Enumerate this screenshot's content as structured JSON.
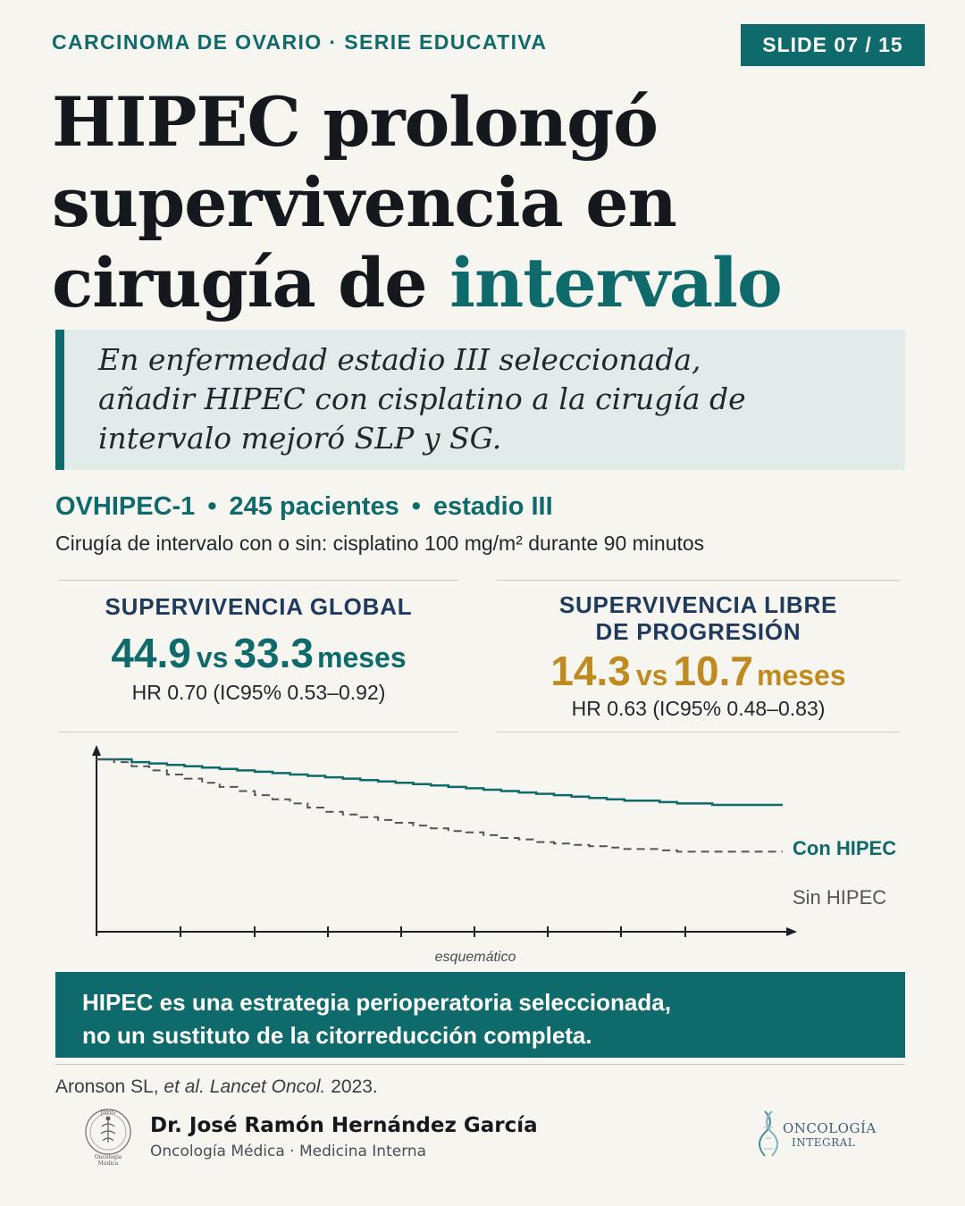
{
  "header": {
    "kicker": "CARCINOMA DE OVARIO · SERIE EDUCATIVA",
    "slide_badge": "SLIDE 07 / 15"
  },
  "title": {
    "line1": "HIPEC prolongó",
    "line2": "supervivencia en",
    "line3_plain": "cirugía de ",
    "line3_accent": "intervalo"
  },
  "quote": {
    "line1": "En enfermedad estadio III seleccionada,",
    "line2": "añadir HIPEC con cisplatino a la cirugía de",
    "line3": "intervalo mejoró SLP y SG."
  },
  "study": {
    "name": "OVHIPEC-1",
    "patients": "245 pacientes",
    "stage": "estadio III",
    "separator": "•",
    "description": "Cirugía de intervalo con o sin: cisplatino 100 mg/m² durante 90 minutos"
  },
  "stats": {
    "os": {
      "label": "SUPERVIVENCIA GLOBAL",
      "value_a": "44.9",
      "vs": "vs",
      "value_b": "33.3",
      "unit": "meses",
      "hr": "HR 0.70 (IC95% 0.53–0.92)"
    },
    "pfs": {
      "label_line1": "SUPERVIVENCIA LIBRE",
      "label_line2": "DE PROGRESIÓN",
      "value_a": "14.3",
      "vs": "vs",
      "value_b": "10.7",
      "unit": "meses",
      "hr": "HR 0.63 (IC95% 0.48–0.83)"
    }
  },
  "chart": {
    "caption": "esquemático",
    "series": [
      {
        "name": "Con HIPEC",
        "color": "#0f6b6b",
        "style": "solid",
        "values": [
          1.0,
          1.0,
          0.98,
          0.97,
          0.96,
          0.95,
          0.94,
          0.93,
          0.92,
          0.91,
          0.9,
          0.89,
          0.88,
          0.87,
          0.86,
          0.85,
          0.84,
          0.83,
          0.82,
          0.81,
          0.8,
          0.79,
          0.78,
          0.77,
          0.76,
          0.75,
          0.74,
          0.73,
          0.72,
          0.71,
          0.7,
          0.7,
          0.69,
          0.68,
          0.68,
          0.67,
          0.67,
          0.67,
          0.67,
          0.67
        ]
      },
      {
        "name": "Sin HIPEC",
        "color": "#555555",
        "style": "dashed",
        "values": [
          1.0,
          0.98,
          0.95,
          0.92,
          0.89,
          0.86,
          0.83,
          0.8,
          0.77,
          0.74,
          0.71,
          0.68,
          0.65,
          0.62,
          0.6,
          0.58,
          0.56,
          0.54,
          0.52,
          0.5,
          0.48,
          0.47,
          0.45,
          0.43,
          0.42,
          0.4,
          0.39,
          0.38,
          0.37,
          0.36,
          0.35,
          0.35,
          0.34,
          0.33,
          0.33,
          0.33,
          0.33,
          0.33,
          0.33,
          0.33
        ]
      }
    ]
  },
  "bottom_note": {
    "line1": "HIPEC es una estrategia perioperatoria seleccionada,",
    "line2": "no un sustituto de la citorreducción completa."
  },
  "citation": {
    "authors": "Aronson SL, ",
    "etal": "et al.",
    "journal": "Lancet Oncol.",
    "year": " 2023."
  },
  "author": {
    "name": "Dr. José Ramón Hernández García",
    "role": "Oncología Médica · Medicina Interna"
  },
  "logo": {
    "line1": "ONCOLOGÍA",
    "line2": "INTEGRAL"
  },
  "seal": {
    "initials": "JRHG",
    "text_line1": "Oncología",
    "text_line2": "Médica"
  }
}
